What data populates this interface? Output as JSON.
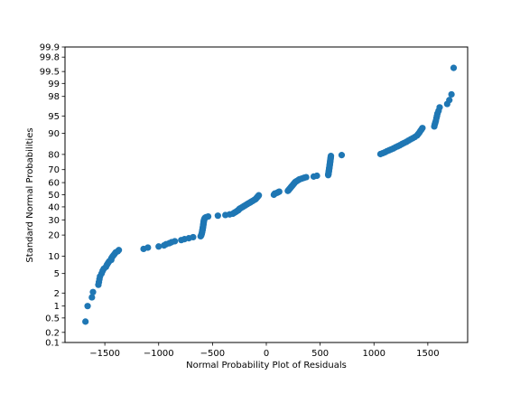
{
  "chart_data": {
    "type": "scatter",
    "title": "",
    "xlabel": "Normal Probability Plot of Residuals",
    "ylabel": "Standard Normal Probabilities",
    "y_scale": "normal-probability",
    "xlim": [
      -1870,
      1870
    ],
    "ylim": [
      0.1,
      99.9
    ],
    "x_ticks": [
      -1500,
      -1000,
      -500,
      0,
      500,
      1000,
      1500
    ],
    "x_tick_labels": [
      "−1500",
      "−1000",
      "−500",
      "0",
      "500",
      "1000",
      "1500"
    ],
    "y_ticks": [
      0.1,
      0.2,
      0.5,
      1,
      2,
      5,
      10,
      20,
      30,
      40,
      50,
      60,
      70,
      80,
      90,
      95,
      98,
      99,
      99.5,
      99.8,
      99.9
    ],
    "y_tick_labels": [
      "0.1",
      "0.2",
      "0.5",
      "1",
      "2",
      "5",
      "10",
      "20",
      "30",
      "40",
      "50",
      "60",
      "70",
      "80",
      "90",
      "95",
      "98",
      "99",
      "99.5",
      "99.8",
      "99.9"
    ],
    "grid": false,
    "legend": "none",
    "marker_color": "#1f77b4",
    "points": [
      [
        -1680,
        0.4
      ],
      [
        -1660,
        1.0
      ],
      [
        -1620,
        1.6
      ],
      [
        -1610,
        2.1
      ],
      [
        -1560,
        3.0
      ],
      [
        -1555,
        3.4
      ],
      [
        -1550,
        3.9
      ],
      [
        -1545,
        4.4
      ],
      [
        -1530,
        5.0
      ],
      [
        -1520,
        5.6
      ],
      [
        -1510,
        6.1
      ],
      [
        -1490,
        6.6
      ],
      [
        -1480,
        7.2
      ],
      [
        -1470,
        7.7
      ],
      [
        -1460,
        8.2
      ],
      [
        -1440,
        8.7
      ],
      [
        -1440,
        9.2
      ],
      [
        -1430,
        9.8
      ],
      [
        -1420,
        10.3
      ],
      [
        -1410,
        10.8
      ],
      [
        -1400,
        11.4
      ],
      [
        -1380,
        11.9
      ],
      [
        -1370,
        12.4
      ],
      [
        -1140,
        12.9
      ],
      [
        -1100,
        13.5
      ],
      [
        -1000,
        14.0
      ],
      [
        -950,
        14.5
      ],
      [
        -930,
        15.1
      ],
      [
        -900,
        15.6
      ],
      [
        -880,
        16.1
      ],
      [
        -850,
        16.6
      ],
      [
        -790,
        17.2
      ],
      [
        -760,
        17.7
      ],
      [
        -720,
        18.2
      ],
      [
        -680,
        18.8
      ],
      [
        -610,
        19.3
      ],
      [
        -605,
        19.8
      ],
      [
        -602,
        20.4
      ],
      [
        -600,
        20.9
      ],
      [
        -598,
        21.4
      ],
      [
        -596,
        21.9
      ],
      [
        -595,
        22.5
      ],
      [
        -593,
        23.0
      ],
      [
        -592,
        23.5
      ],
      [
        -590,
        24.1
      ],
      [
        -590,
        24.6
      ],
      [
        -588,
        25.1
      ],
      [
        -587,
        25.7
      ],
      [
        -586,
        26.2
      ],
      [
        -585,
        26.7
      ],
      [
        -584,
        27.2
      ],
      [
        -583,
        27.8
      ],
      [
        -582,
        28.3
      ],
      [
        -581,
        28.8
      ],
      [
        -580,
        29.4
      ],
      [
        -578,
        29.9
      ],
      [
        -576,
        30.4
      ],
      [
        -574,
        30.9
      ],
      [
        -570,
        31.5
      ],
      [
        -560,
        32.0
      ],
      [
        -540,
        32.5
      ],
      [
        -450,
        33.1
      ],
      [
        -380,
        33.6
      ],
      [
        -340,
        34.1
      ],
      [
        -310,
        34.6
      ],
      [
        -300,
        35.2
      ],
      [
        -290,
        35.7
      ],
      [
        -280,
        36.2
      ],
      [
        -270,
        36.8
      ],
      [
        -260,
        37.3
      ],
      [
        -255,
        37.8
      ],
      [
        -250,
        38.4
      ],
      [
        -240,
        38.9
      ],
      [
        -230,
        39.4
      ],
      [
        -220,
        39.9
      ],
      [
        -210,
        40.5
      ],
      [
        -200,
        41.0
      ],
      [
        -190,
        41.5
      ],
      [
        -180,
        42.1
      ],
      [
        -170,
        42.6
      ],
      [
        -160,
        43.1
      ],
      [
        -150,
        43.6
      ],
      [
        -140,
        44.2
      ],
      [
        -130,
        44.7
      ],
      [
        -120,
        45.2
      ],
      [
        -110,
        45.8
      ],
      [
        -100,
        46.3
      ],
      [
        -95,
        46.8
      ],
      [
        -90,
        47.4
      ],
      [
        -85,
        47.9
      ],
      [
        -80,
        48.4
      ],
      [
        -75,
        48.9
      ],
      [
        -70,
        49.5
      ],
      [
        70,
        50.0
      ],
      [
        75,
        50.5
      ],
      [
        80,
        51.1
      ],
      [
        100,
        51.6
      ],
      [
        110,
        52.1
      ],
      [
        120,
        52.6
      ],
      [
        200,
        53.2
      ],
      [
        205,
        53.7
      ],
      [
        210,
        54.2
      ],
      [
        215,
        54.8
      ],
      [
        220,
        55.3
      ],
      [
        225,
        55.8
      ],
      [
        230,
        56.4
      ],
      [
        235,
        56.9
      ],
      [
        240,
        57.4
      ],
      [
        245,
        57.9
      ],
      [
        250,
        58.5
      ],
      [
        255,
        59.0
      ],
      [
        260,
        59.5
      ],
      [
        265,
        60.1
      ],
      [
        270,
        60.6
      ],
      [
        280,
        61.1
      ],
      [
        290,
        61.6
      ],
      [
        300,
        62.2
      ],
      [
        310,
        62.7
      ],
      [
        330,
        63.2
      ],
      [
        350,
        63.8
      ],
      [
        370,
        64.3
      ],
      [
        440,
        64.8
      ],
      [
        470,
        65.4
      ],
      [
        575,
        65.9
      ],
      [
        576,
        66.4
      ],
      [
        577,
        66.9
      ],
      [
        578,
        67.5
      ],
      [
        579,
        68.0
      ],
      [
        580,
        68.5
      ],
      [
        581,
        69.1
      ],
      [
        582,
        69.6
      ],
      [
        583,
        70.1
      ],
      [
        584,
        70.6
      ],
      [
        585,
        71.2
      ],
      [
        586,
        71.7
      ],
      [
        587,
        72.2
      ],
      [
        588,
        72.8
      ],
      [
        589,
        73.3
      ],
      [
        590,
        73.8
      ],
      [
        591,
        74.3
      ],
      [
        592,
        74.9
      ],
      [
        593,
        75.4
      ],
      [
        594,
        75.9
      ],
      [
        595,
        76.5
      ],
      [
        596,
        77.0
      ],
      [
        597,
        77.5
      ],
      [
        598,
        78.1
      ],
      [
        599,
        78.6
      ],
      [
        600,
        79.1
      ],
      [
        700,
        79.6
      ],
      [
        1060,
        80.2
      ],
      [
        1080,
        80.7
      ],
      [
        1100,
        81.2
      ],
      [
        1120,
        81.8
      ],
      [
        1140,
        82.3
      ],
      [
        1160,
        82.8
      ],
      [
        1180,
        83.3
      ],
      [
        1200,
        83.9
      ],
      [
        1220,
        84.4
      ],
      [
        1240,
        84.9
      ],
      [
        1260,
        85.5
      ],
      [
        1280,
        86.0
      ],
      [
        1300,
        86.5
      ],
      [
        1320,
        87.1
      ],
      [
        1340,
        87.6
      ],
      [
        1360,
        88.1
      ],
      [
        1380,
        88.6
      ],
      [
        1400,
        89.2
      ],
      [
        1410,
        89.7
      ],
      [
        1420,
        90.2
      ],
      [
        1430,
        90.8
      ],
      [
        1440,
        91.3
      ],
      [
        1450,
        91.8
      ],
      [
        1560,
        92.3
      ],
      [
        1565,
        92.9
      ],
      [
        1570,
        93.4
      ],
      [
        1575,
        93.9
      ],
      [
        1580,
        94.5
      ],
      [
        1585,
        95.0
      ],
      [
        1590,
        95.5
      ],
      [
        1600,
        96.0
      ],
      [
        1610,
        96.6
      ],
      [
        1680,
        97.1
      ],
      [
        1700,
        97.6
      ],
      [
        1720,
        98.2
      ],
      [
        1740,
        99.6
      ]
    ]
  }
}
